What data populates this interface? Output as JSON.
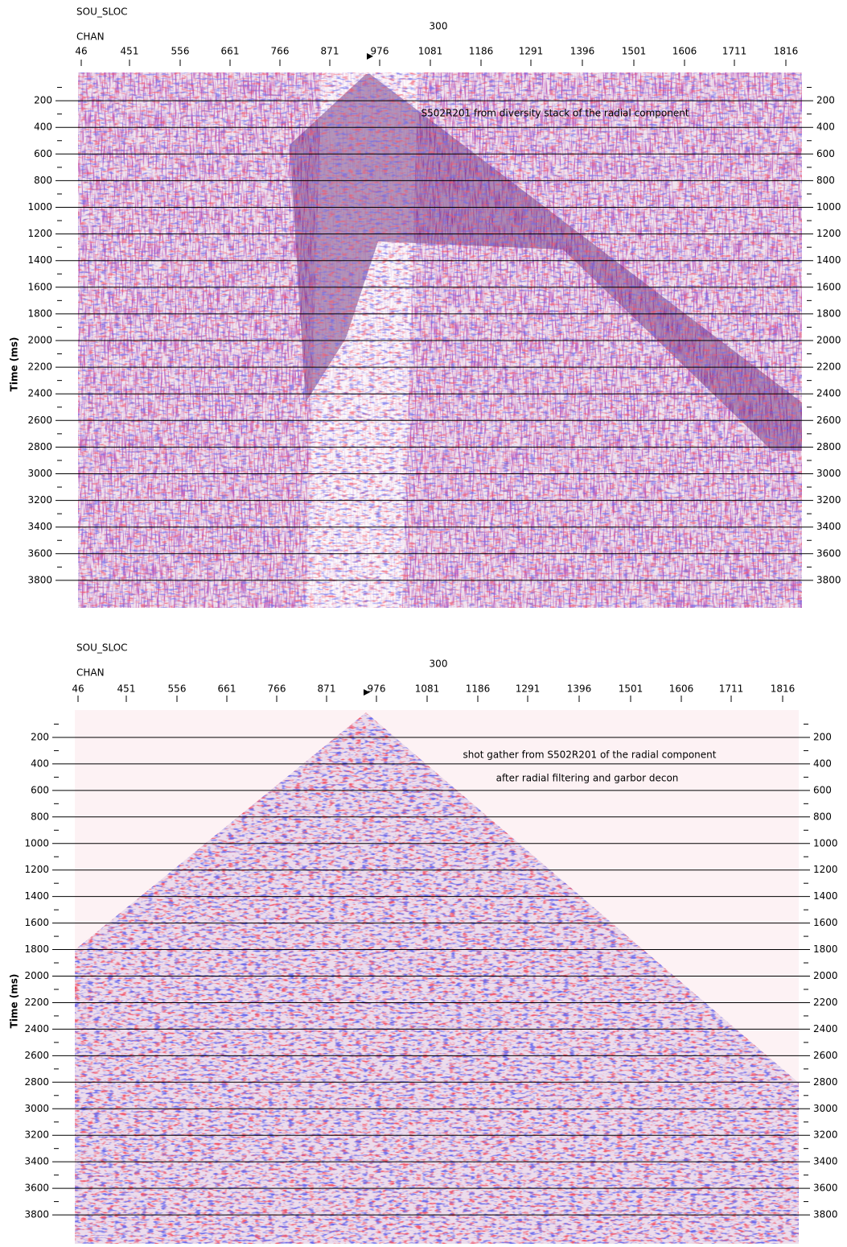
{
  "panels": [
    {
      "header": "SOU_SLOC",
      "center_label": "300",
      "axis_label": "CHAN",
      "x_ticks": [
        46,
        451,
        556,
        661,
        766,
        871,
        976,
        1081,
        1186,
        1291,
        1396,
        1501,
        1606,
        1711,
        1816
      ],
      "y_ticks": [
        200,
        400,
        600,
        800,
        1000,
        1200,
        1400,
        1600,
        1800,
        2000,
        2200,
        2400,
        2600,
        2800,
        3000,
        3200,
        3400,
        3600,
        3800
      ],
      "y_label": "Time (ms)",
      "annotations": [
        "S502R201 from diversity stack of the radial component"
      ]
    },
    {
      "header": "SOU_SLOC",
      "center_label": "300",
      "axis_label": "CHAN",
      "x_ticks": [
        46,
        451,
        556,
        661,
        766,
        871,
        976,
        1081,
        1186,
        1291,
        1396,
        1501,
        1606,
        1711,
        1816
      ],
      "y_ticks": [
        200,
        400,
        600,
        800,
        1000,
        1200,
        1400,
        1600,
        1800,
        2000,
        2200,
        2400,
        2600,
        2800,
        3000,
        3200,
        3400,
        3600,
        3800
      ],
      "y_label": "Time (ms)",
      "annotations": [
        "shot gather from S502R201 of the radial component",
        "after radial filtering and garbor decon"
      ]
    }
  ]
}
